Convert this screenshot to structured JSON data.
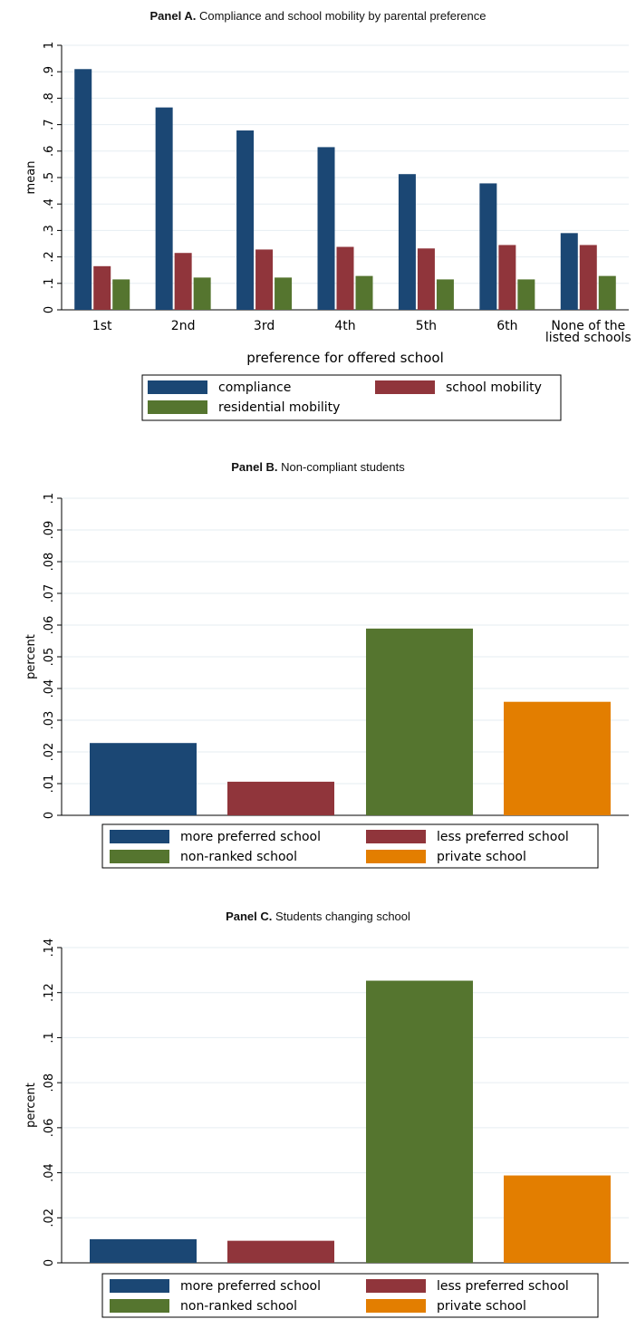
{
  "chart_data": [
    {
      "type": "bar",
      "panel_label": "Panel A.",
      "title": "Compliance and school mobility by  parental preference",
      "xlabel": "preference for offered school",
      "ylabel": "mean",
      "ylim": [
        0,
        1
      ],
      "yticks": [
        "0",
        ".1",
        ".2",
        ".3",
        ".4",
        ".5",
        ".6",
        ".7",
        ".8",
        ".9",
        "1"
      ],
      "categories": [
        "1st",
        "2nd",
        "3rd",
        "4th",
        "5th",
        "6th",
        "None of the|listed schools"
      ],
      "series": [
        {
          "name": "compliance",
          "color": "#1b4774",
          "values": [
            0.91,
            0.765,
            0.678,
            0.615,
            0.513,
            0.478,
            0.29
          ]
        },
        {
          "name": "school mobility",
          "color": "#90353b",
          "values": [
            0.165,
            0.215,
            0.228,
            0.238,
            0.232,
            0.245,
            0.245
          ]
        },
        {
          "name": "residential mobility",
          "color": "#55752f",
          "values": [
            0.115,
            0.122,
            0.122,
            0.128,
            0.115,
            0.115,
            0.128
          ]
        }
      ],
      "grid": true,
      "legend": "bottom"
    },
    {
      "type": "bar",
      "panel_label": "Panel B.",
      "title": "Non-compliant students",
      "xlabel": "",
      "ylabel": "percent",
      "ylim": [
        0,
        0.1
      ],
      "yticks": [
        "0",
        ".01",
        ".02",
        ".03",
        ".04",
        ".05",
        ".06",
        ".07",
        ".08",
        ".09",
        ".1"
      ],
      "series": [
        {
          "name": "more preferred school",
          "color": "#1b4774",
          "value": 0.0228
        },
        {
          "name": "less preferred school",
          "color": "#90353b",
          "value": 0.0106
        },
        {
          "name": "non-ranked school",
          "color": "#55752f",
          "value": 0.0589
        },
        {
          "name": "private school",
          "color": "#e37e00",
          "value": 0.0358
        }
      ],
      "grid": true,
      "legend": "bottom"
    },
    {
      "type": "bar",
      "panel_label": "Panel C.",
      "title": "Students changing school",
      "xlabel": "",
      "ylabel": "percent",
      "ylim": [
        0,
        0.14
      ],
      "yticks": [
        "0",
        ".02",
        ".04",
        ".06",
        ".08",
        ".1",
        ".12",
        ".14"
      ],
      "series": [
        {
          "name": "more preferred school",
          "color": "#1b4774",
          "value": 0.0105
        },
        {
          "name": "less preferred school",
          "color": "#90353b",
          "value": 0.0098
        },
        {
          "name": "non-ranked school",
          "color": "#55752f",
          "value": 0.1253
        },
        {
          "name": "private school",
          "color": "#e37e00",
          "value": 0.0388
        }
      ],
      "grid": true,
      "legend": "bottom"
    }
  ]
}
